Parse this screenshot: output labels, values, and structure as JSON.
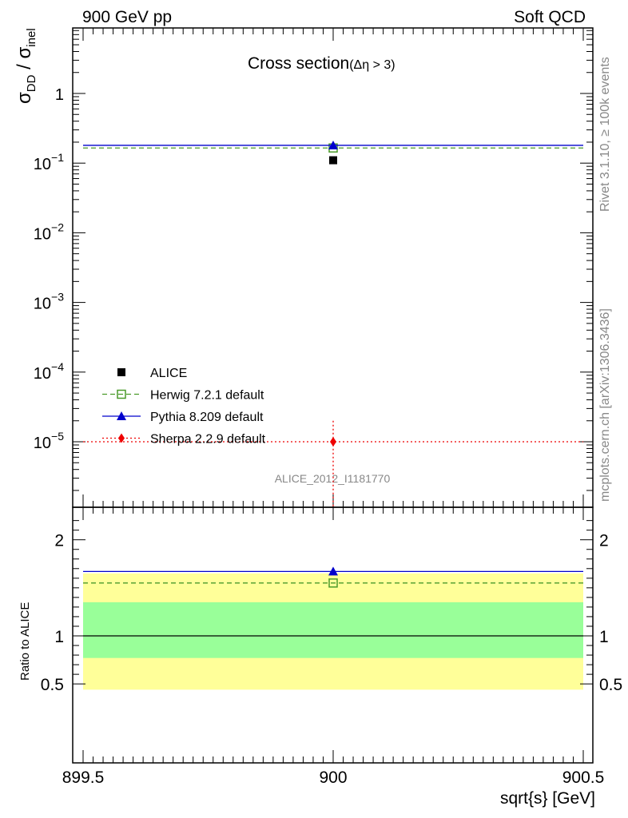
{
  "header": {
    "left": "900 GeV pp",
    "right": "Soft QCD"
  },
  "side_text": {
    "rivet": "Rivet 3.1.10, ≥ 100k events",
    "mcplots": "mcplots.cern.ch [arXiv:1306.3436]"
  },
  "watermark": "ALICE_2012_I1181770",
  "colors": {
    "alice": "#000000",
    "herwig": "#4a9a2a",
    "pythia": "#0000cc",
    "sherpa": "#ee0000",
    "band_outer": "#ffff99",
    "band_inner": "#99ff99"
  },
  "chart_data": [
    {
      "type": "scatter",
      "title": "Cross section",
      "title_sub": "(Δη > 3)",
      "ylabel": "σ_DD / σ_inel",
      "ylabel_main": "σ",
      "ylabel_sub1": "DD",
      "ylabel_sep": " / σ",
      "ylabel_sub2": "inel",
      "yscale": "log",
      "xlim": [
        899.5,
        900.5
      ],
      "ylim": [
        8e-07,
        9
      ],
      "yticks": [
        {
          "value": 1e-05,
          "base": "10",
          "exp": "−5"
        },
        {
          "value": 0.0001,
          "base": "10",
          "exp": "−4"
        },
        {
          "value": 0.001,
          "base": "10",
          "exp": "−3"
        },
        {
          "value": 0.01,
          "base": "10",
          "exp": "−2"
        },
        {
          "value": 0.1,
          "base": "10",
          "exp": "−1"
        },
        {
          "value": 1,
          "base": "1",
          "exp": ""
        }
      ],
      "legend_position": "bottom-left",
      "series": [
        {
          "name": "ALICE",
          "x": 900,
          "y": 0.11,
          "marker": "square-filled",
          "line": "none"
        },
        {
          "name": "Herwig 7.2.1 default",
          "x": 900,
          "y": 0.165,
          "marker": "square-open",
          "line": "dashed"
        },
        {
          "name": "Pythia 8.209 default",
          "x": 900,
          "y": 0.18,
          "marker": "triangle",
          "line": "solid"
        },
        {
          "name": "Sherpa 2.2.9 default",
          "x": 900,
          "y": 1e-05,
          "yerr": [
            2e-07,
            2e-05
          ],
          "marker": "diamond",
          "line": "dotted"
        }
      ]
    },
    {
      "type": "scatter",
      "ylabel": "Ratio to ALICE",
      "xlabel": "sqrt{s} [GeV]",
      "xlim": [
        899.5,
        900.5
      ],
      "ylim": [
        0.4,
        2.35
      ],
      "xticks": [
        "899.5",
        "900",
        "900.5"
      ],
      "yticks": [
        "0.5",
        "1",
        "2"
      ],
      "bands": {
        "outer": [
          0.44,
          1.65
        ],
        "inner": [
          0.77,
          1.35
        ]
      },
      "reference": 1.0,
      "series": [
        {
          "name": "Herwig 7.2.1 default",
          "x": 900,
          "y": 1.55
        },
        {
          "name": "Pythia 8.209 default",
          "x": 900,
          "y": 1.67
        }
      ]
    }
  ]
}
